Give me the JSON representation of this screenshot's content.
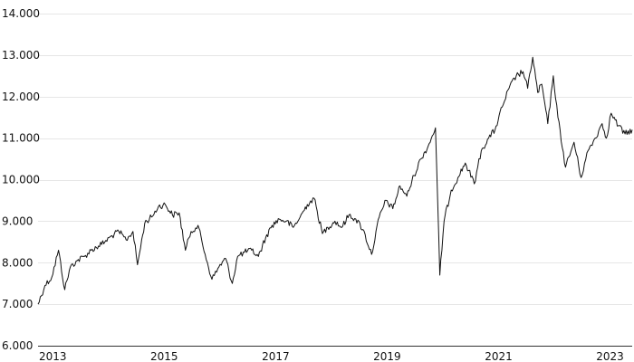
{
  "chart_data": {
    "type": "line",
    "title": "",
    "xlabel": "",
    "ylabel": "",
    "ylim": [
      6000,
      14000
    ],
    "xlim": [
      "2013-01-01",
      "2023-08-31"
    ],
    "y_ticks": [
      6000,
      7000,
      8000,
      9000,
      10000,
      11000,
      12000,
      13000,
      14000
    ],
    "y_tick_labels": [
      "6.000",
      "7.000",
      "8.000",
      "9.000",
      "10.000",
      "11.000",
      "12.000",
      "13.000",
      "14.000"
    ],
    "x_ticks": [
      "2013-01-01",
      "2015-01-01",
      "2017-01-01",
      "2019-01-01",
      "2021-01-01",
      "2023-01-01"
    ],
    "x_tick_labels": [
      "2013",
      "2015",
      "2017",
      "2019",
      "2021",
      "2023"
    ],
    "grid": "horizontal",
    "legend": "none",
    "colors": {
      "line": "#111111",
      "grid": "#e6e6e6",
      "axis": "#333333"
    },
    "series": [
      {
        "x": [
          "2013-01-01",
          "2013-02-15",
          "2013-04-01",
          "2013-05-15",
          "2013-06-25",
          "2013-08-01",
          "2013-09-15",
          "2013-11-01",
          "2013-12-15",
          "2014-02-01",
          "2014-03-15",
          "2014-05-01",
          "2014-06-15",
          "2014-08-01",
          "2014-09-15",
          "2014-10-15",
          "2014-12-01",
          "2015-01-15",
          "2015-03-01",
          "2015-04-15",
          "2015-06-01",
          "2015-07-15",
          "2015-08-25",
          "2015-10-01",
          "2015-11-15",
          "2016-01-01",
          "2016-02-15",
          "2016-04-01",
          "2016-05-15",
          "2016-06-27",
          "2016-08-01",
          "2016-09-15",
          "2016-11-01",
          "2016-12-15",
          "2017-02-01",
          "2017-03-15",
          "2017-05-01",
          "2017-06-15",
          "2017-08-01",
          "2017-09-15",
          "2017-11-01",
          "2017-12-15",
          "2018-02-08",
          "2018-03-15",
          "2018-05-01",
          "2018-06-15",
          "2018-08-01",
          "2018-09-15",
          "2018-11-01",
          "2018-12-27",
          "2019-02-15",
          "2019-04-01",
          "2019-05-15",
          "2019-07-01",
          "2019-08-15",
          "2019-10-01",
          "2019-11-15",
          "2020-01-01",
          "2020-02-19",
          "2020-03-18",
          "2020-04-15",
          "2020-06-01",
          "2020-07-15",
          "2020-09-01",
          "2020-10-30",
          "2020-12-15",
          "2021-02-01",
          "2021-03-15",
          "2021-05-01",
          "2021-06-15",
          "2021-08-01",
          "2021-09-15",
          "2021-10-15",
          "2021-11-17",
          "2021-12-20",
          "2022-01-15",
          "2022-02-24",
          "2022-04-01",
          "2022-05-01",
          "2022-06-20",
          "2022-08-15",
          "2022-09-30",
          "2022-11-15",
          "2023-01-01",
          "2023-02-15",
          "2023-03-15",
          "2023-04-15",
          "2023-06-01",
          "2023-07-15",
          "2023-08-31"
        ],
        "values": [
          7000,
          7450,
          7650,
          8300,
          7350,
          7900,
          8050,
          8150,
          8300,
          8400,
          8500,
          8650,
          8750,
          8550,
          8750,
          7950,
          8950,
          9100,
          9350,
          9400,
          9150,
          9200,
          8300,
          8750,
          8900,
          8200,
          7600,
          7900,
          8100,
          7500,
          8150,
          8250,
          8300,
          8150,
          8600,
          8900,
          9050,
          9000,
          8850,
          9100,
          9400,
          9550,
          8700,
          8850,
          9000,
          8850,
          9150,
          9050,
          8800,
          8200,
          9100,
          9500,
          9300,
          9850,
          9600,
          10100,
          10500,
          10800,
          11250,
          7700,
          9000,
          9750,
          10050,
          10400,
          9900,
          10700,
          11000,
          11200,
          11750,
          12200,
          12500,
          12600,
          12200,
          12950,
          12100,
          12300,
          11350,
          12500,
          11500,
          10300,
          10900,
          10050,
          10700,
          11000,
          11350,
          11000,
          11600,
          11300,
          11100,
          11200
        ]
      }
    ]
  }
}
